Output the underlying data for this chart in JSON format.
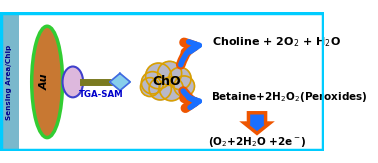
{
  "bg_color": "#ffffff",
  "border_color": "#00ccff",
  "chip_color": "#7ab8cc",
  "chip_text_color": "#00008b",
  "au_disk_color": "#c87832",
  "au_outline_color": "#32cd32",
  "au_text": "Au",
  "ellipse_fill": "#ddb8dd",
  "ellipse_outline": "#4040cc",
  "linker_color": "#7a7a20",
  "diamond_color": "#87ceeb",
  "diamond_outline": "#4169e1",
  "cloud_fill": "#b8b8c8",
  "cloud_outline": "#daa000",
  "cho_text": "ChO",
  "tga_text": "TGA-SAM",
  "tga_color": "#0000cc",
  "arrow_blue": "#1a6fff",
  "arrow_orange": "#ee5500",
  "sensing_text": "Sensing Area/Chip",
  "text_choline": "Choline + 2O$_2$ + H$_2$O",
  "text_betaine": "Betaine+2H$_2$O$_2$(Peroxides)",
  "text_reaction": "(O$_2$+2H$_2$O +2e$^-$)"
}
